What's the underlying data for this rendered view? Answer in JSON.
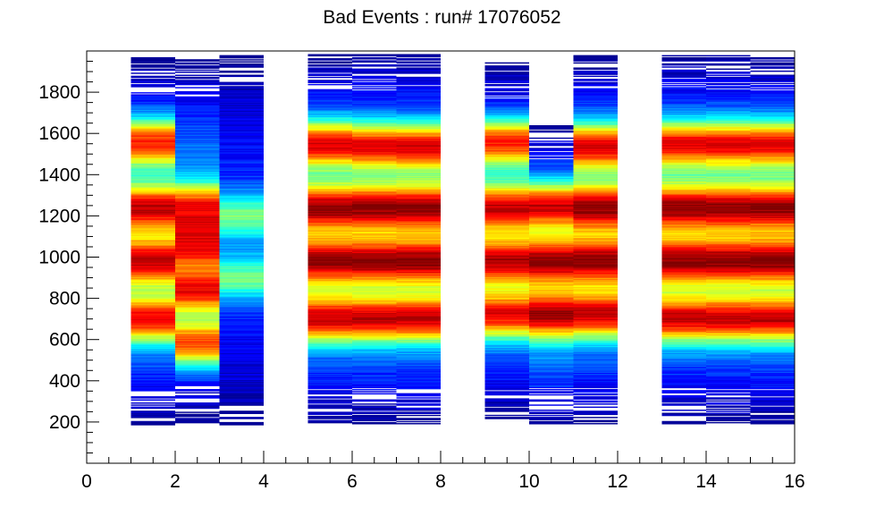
{
  "chart_data": {
    "type": "heatmap",
    "title": "Bad Events : run# 17076052",
    "xlabel": "",
    "ylabel": "",
    "xlim": [
      0,
      16
    ],
    "ylim": [
      0,
      2000
    ],
    "x_ticks": [
      "0",
      "2",
      "4",
      "6",
      "8",
      "10",
      "12",
      "14",
      "16"
    ],
    "y_ticks": [
      "200",
      "400",
      "600",
      "800",
      "1000",
      "1200",
      "1400",
      "1600",
      "1800"
    ],
    "y_tick_values": [
      200,
      400,
      600,
      800,
      1000,
      1200,
      1400,
      1600,
      1800
    ],
    "x_tick_values": [
      0,
      2,
      4,
      6,
      8,
      10,
      12,
      14,
      16
    ],
    "grid": false,
    "colormap": [
      "#00007f",
      "#0000ff",
      "#0080ff",
      "#00ffff",
      "#80ff80",
      "#ffff00",
      "#ff8000",
      "#ff0000",
      "#7f0000"
    ],
    "columns": [
      {
        "x_start": 1,
        "x_end": 2,
        "y_min": 180,
        "y_max": 1970,
        "peaks": [
          700,
          980,
          1240,
          1560
        ],
        "peak_level": 0.95
      },
      {
        "x_start": 2,
        "x_end": 3,
        "y_min": 195,
        "y_max": 1960,
        "peaks": [
          580,
          840,
          1060,
          1240
        ],
        "peak_level": 0.9
      },
      {
        "x_start": 3,
        "x_end": 4,
        "y_min": 185,
        "y_max": 1985,
        "peaks": [
          900,
          1200
        ],
        "peak_level": 0.5
      },
      {
        "x_start": 5,
        "x_end": 6,
        "y_min": 185,
        "y_max": 1985,
        "peaks": [
          700,
          980,
          1240,
          1550
        ],
        "peak_level": 1.0
      },
      {
        "x_start": 6,
        "x_end": 7,
        "y_min": 185,
        "y_max": 1985,
        "peaks": [
          700,
          980,
          1240,
          1540
        ],
        "peak_level": 1.0
      },
      {
        "x_start": 7,
        "x_end": 8,
        "y_min": 185,
        "y_max": 1985,
        "peaks": [
          700,
          980,
          1240,
          1540
        ],
        "peak_level": 1.0
      },
      {
        "x_start": 9,
        "x_end": 10,
        "y_min": 215,
        "y_max": 1945,
        "peaks": [
          720,
          980,
          1240,
          1560
        ],
        "peak_level": 0.95
      },
      {
        "x_start": 10,
        "x_end": 11,
        "y_min": 185,
        "y_max": 1640,
        "peaks": [
          720,
          980,
          1250
        ],
        "peak_level": 1.0
      },
      {
        "x_start": 11,
        "x_end": 12,
        "y_min": 190,
        "y_max": 1985,
        "peaks": [
          720,
          980,
          1240,
          1540
        ],
        "peak_level": 1.0
      },
      {
        "x_start": 13,
        "x_end": 14,
        "y_min": 190,
        "y_max": 1985,
        "peaks": [
          700,
          980,
          1240,
          1550
        ],
        "peak_level": 1.0
      },
      {
        "x_start": 14,
        "x_end": 15,
        "y_min": 185,
        "y_max": 1985,
        "peaks": [
          700,
          980,
          1240,
          1550
        ],
        "peak_level": 1.0
      },
      {
        "x_start": 15,
        "x_end": 16,
        "y_min": 185,
        "y_max": 1985,
        "peaks": [
          700,
          980,
          1240,
          1550
        ],
        "peak_level": 1.0
      }
    ]
  }
}
